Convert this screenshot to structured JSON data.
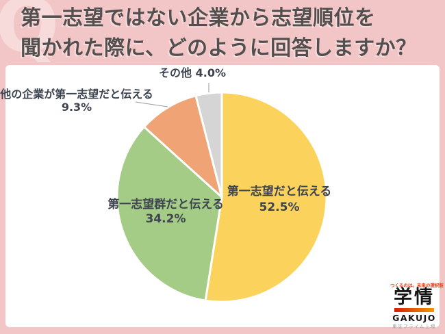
{
  "header": {
    "watermark": "Q",
    "line1": "第一志望ではない企業から志望順位を",
    "line2": "聞かれた際に、どのように回答しますか？"
  },
  "chart_data": {
    "type": "pie",
    "title": "第一志望ではない企業から志望順位を聞かれた際に、どのように回答しますか？",
    "start_angle_deg": 0,
    "direction": "clockwise",
    "legend_position": "none",
    "slices": [
      {
        "label": "第一志望だと伝える",
        "value": 52.5,
        "display": "52.5%",
        "color": "#FBD35C",
        "label_position": "inside-right"
      },
      {
        "label": "第一志望群だと伝える",
        "value": 34.2,
        "display": "34.2%",
        "color": "#A5CC86",
        "label_position": "inside-left"
      },
      {
        "label": "他の企業が第一志望だと伝える",
        "value": 9.3,
        "display": "9.3%",
        "color": "#F0A475",
        "label_position": "outside-upper-left"
      },
      {
        "label": "その他",
        "value": 4.0,
        "display": "4.0%",
        "color": "#D5D5D5",
        "label_position": "outside-top"
      }
    ]
  },
  "logo": {
    "tagline": "つくるのは。未来の選択肢",
    "name": "学情",
    "romaji": "GAKUJO",
    "note": "東証プライム上場"
  },
  "colors": {
    "background_pink": "#F2C6C6",
    "panel_white": "#FFFFFF",
    "header_text": "#534F4F",
    "label_text": "#3D4450",
    "logo_red": "#E8380D",
    "logo_orange": "#F39800",
    "leader_line": "#9A9A9A"
  }
}
